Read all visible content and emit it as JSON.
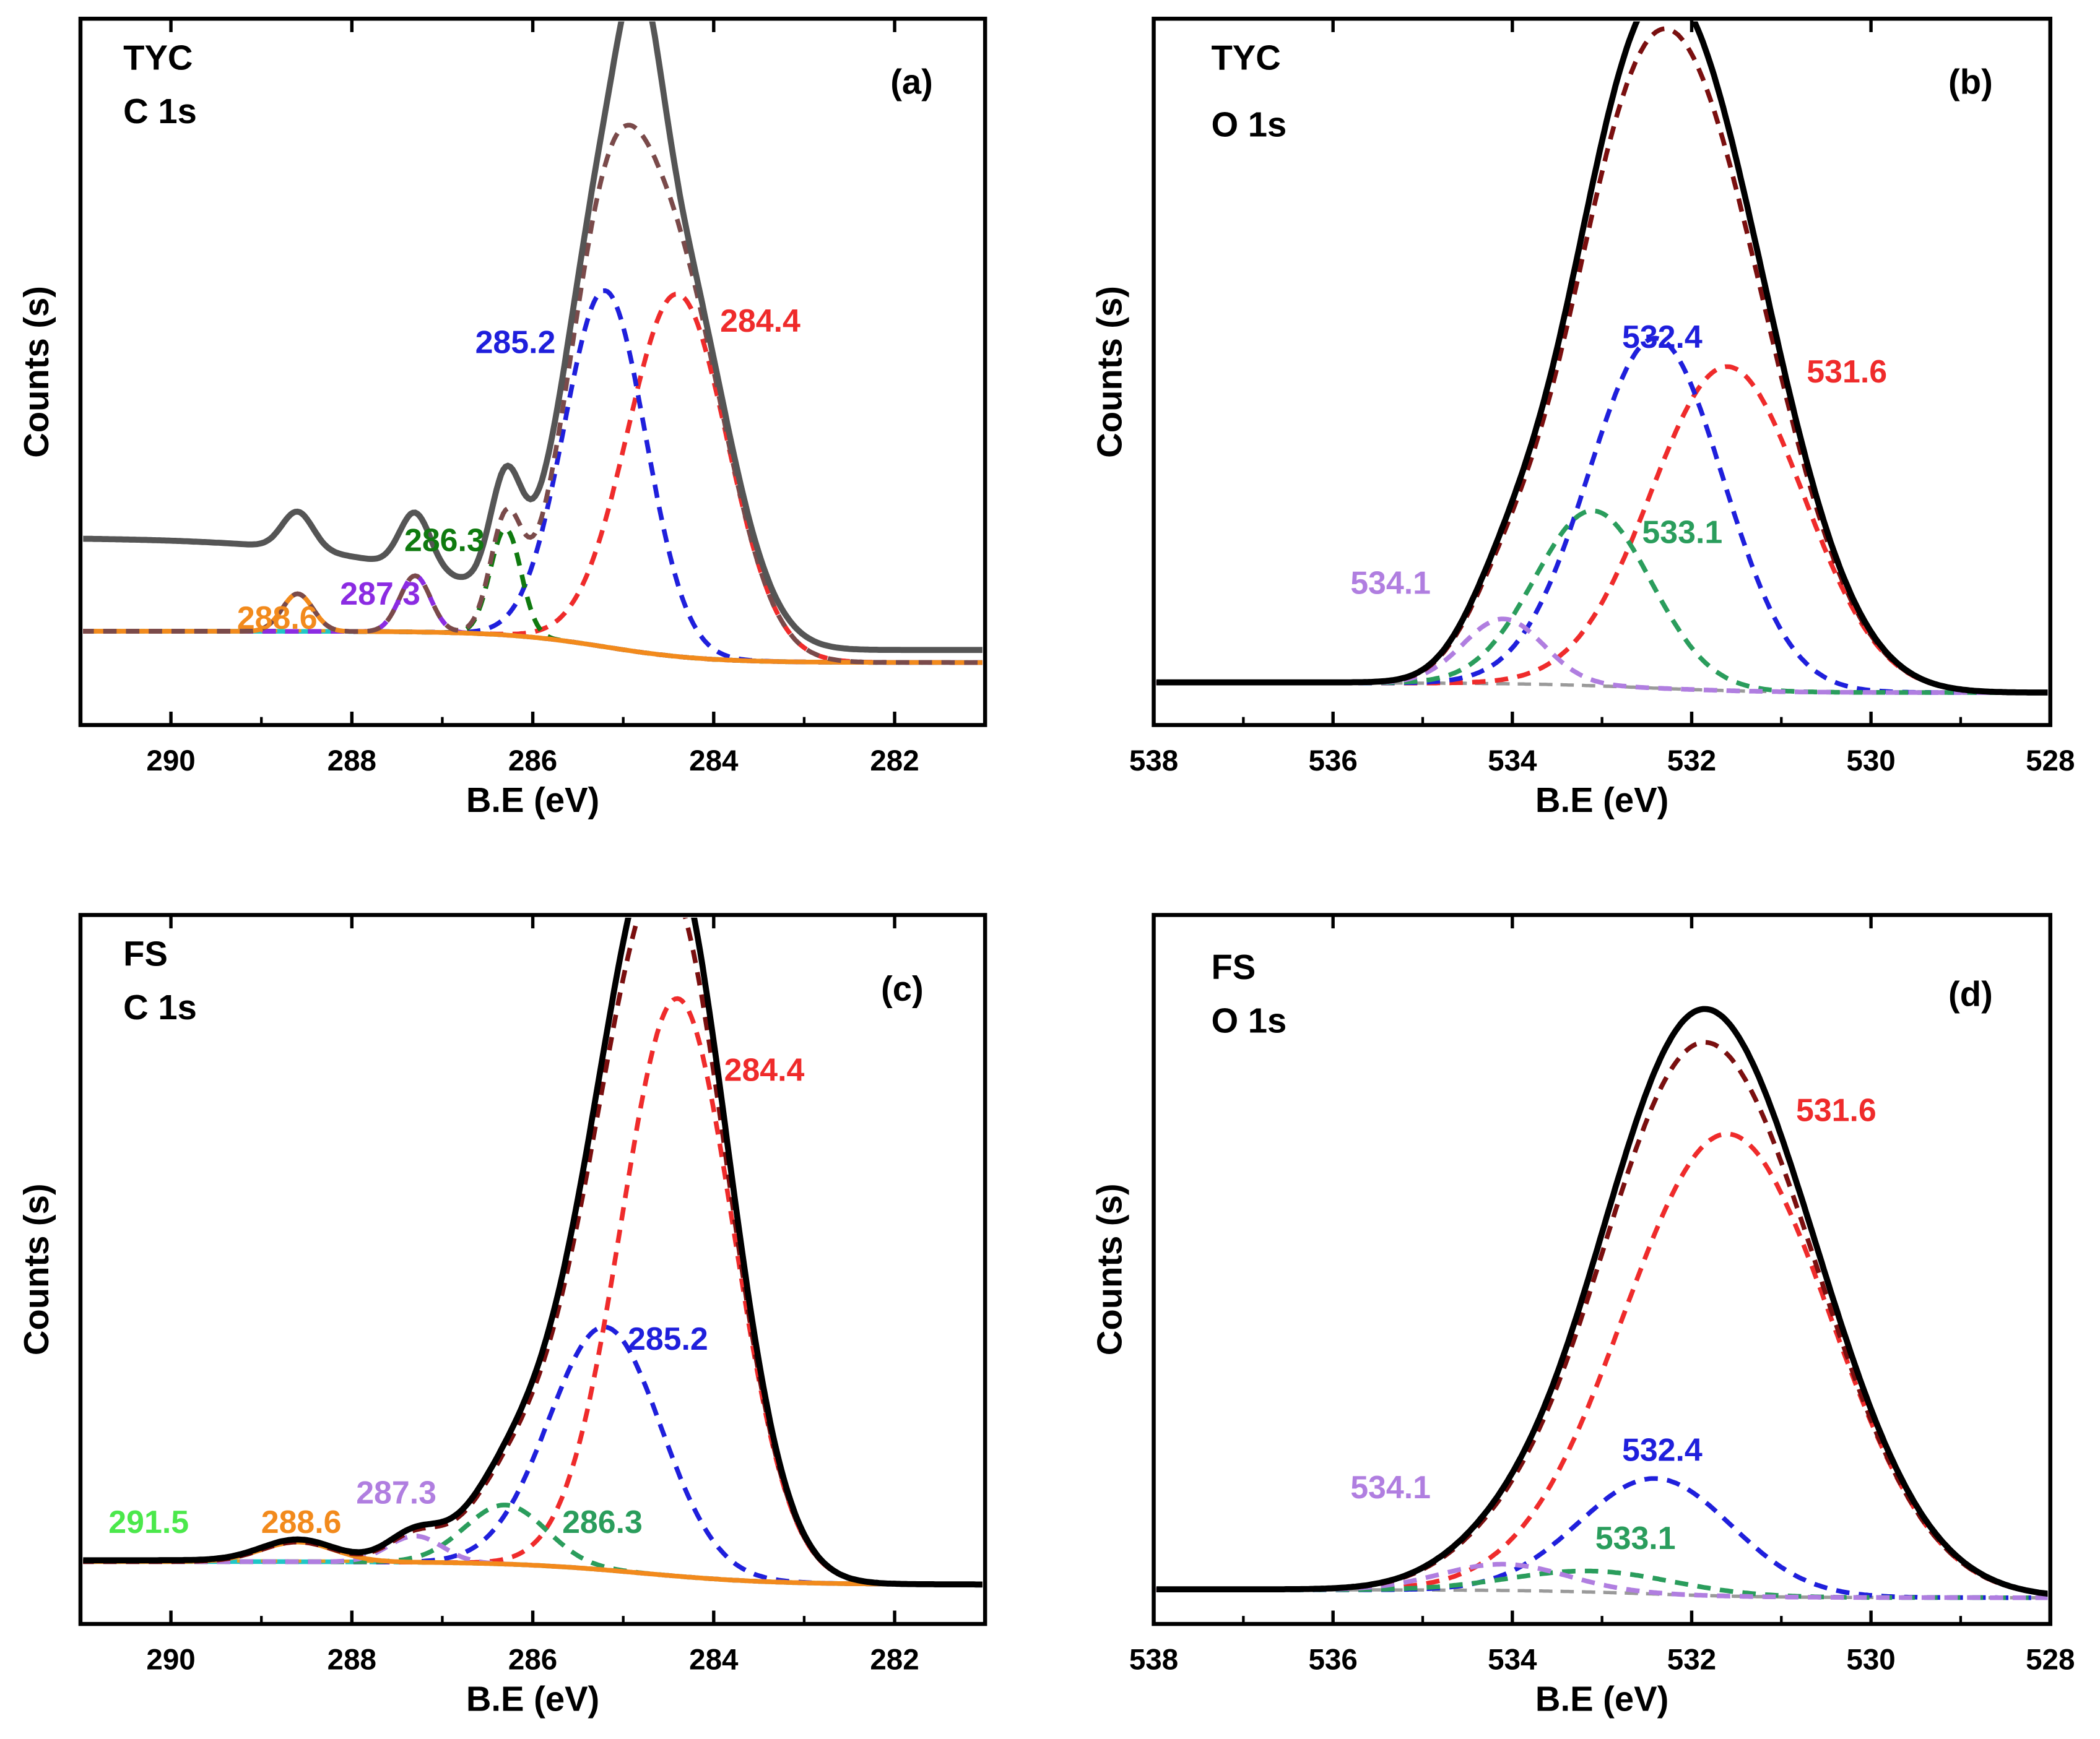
{
  "chart_data": [
    {
      "panel": "(a)",
      "type": "line",
      "sample": "TYC",
      "region": "C 1s",
      "xlabel": "B.E (eV)",
      "ylabel": "Counts (s)",
      "xlim": [
        291,
        281
      ],
      "ylim": [
        -0.08,
        1.05
      ],
      "xticks": [
        290,
        288,
        286,
        284,
        282
      ],
      "peaks": [
        {
          "label": "284.4",
          "color": "#ef2b2b",
          "center": 284.4,
          "height": 0.58,
          "sigma": 0.55,
          "dashed": true
        },
        {
          "label": "285.2",
          "color": "#1f1fdc",
          "center": 285.2,
          "height": 0.57,
          "sigma": 0.45,
          "dashed": true
        },
        {
          "label": "286.3",
          "color": "#0f7a0f",
          "center": 286.3,
          "height": 0.17,
          "sigma": 0.17,
          "dashed": true
        },
        {
          "label": "287.3",
          "color": "#8b2be2",
          "center": 287.3,
          "height": 0.09,
          "sigma": 0.17,
          "dashed": true
        },
        {
          "label": "288.6",
          "color": "#f28a1c",
          "center": 288.6,
          "height": 0.06,
          "sigma": 0.17,
          "dashed": false
        }
      ],
      "envelope_color": "#555555",
      "sum_color": "#7a4a4a",
      "baseline_color": "#1fc7c7",
      "baseline2_color": "#e0a020"
    },
    {
      "panel": "(b)",
      "type": "line",
      "sample": "TYC",
      "region": "O 1s",
      "xlabel": "B.E (eV)",
      "ylabel": "Counts (s)",
      "xlim": [
        538,
        528
      ],
      "ylim": [
        -0.05,
        1.04
      ],
      "xticks": [
        538,
        536,
        534,
        532,
        530,
        528
      ],
      "peaks": [
        {
          "label": "531.6",
          "color": "#ef2b2b",
          "center": 531.6,
          "height": 0.5,
          "sigma": 0.85,
          "dashed": true
        },
        {
          "label": "532.4",
          "color": "#1f1fdc",
          "center": 532.4,
          "height": 0.54,
          "sigma": 0.75,
          "dashed": true
        },
        {
          "label": "533.1",
          "color": "#2a9d5c",
          "center": 533.1,
          "height": 0.27,
          "sigma": 0.65,
          "dashed": true
        },
        {
          "label": "534.1",
          "color": "#b07ee0",
          "center": 534.1,
          "height": 0.1,
          "sigma": 0.45,
          "dashed": true
        }
      ],
      "envelope_color": "#000000",
      "sum_color": "#7a0f0f"
    },
    {
      "panel": "(c)",
      "type": "line",
      "sample": "FS",
      "region": "C 1s",
      "xlabel": "B.E (eV)",
      "ylabel": "Counts (s)",
      "xlim": [
        291,
        281
      ],
      "ylim": [
        -0.06,
        1.02
      ],
      "xticks": [
        290,
        288,
        286,
        284,
        282
      ],
      "peaks": [
        {
          "label": "284.4",
          "color": "#ef2b2b",
          "center": 284.4,
          "height": 0.88,
          "sigma": 0.62,
          "dashed": true
        },
        {
          "label": "285.2",
          "color": "#1f1fdc",
          "center": 285.2,
          "height": 0.37,
          "sigma": 0.62,
          "dashed": true
        },
        {
          "label": "286.3",
          "color": "#2a9d5c",
          "center": 286.3,
          "height": 0.09,
          "sigma": 0.45,
          "dashed": true
        },
        {
          "label": "287.3",
          "color": "#b07ee0",
          "center": 287.3,
          "height": 0.04,
          "sigma": 0.3,
          "dashed": true
        },
        {
          "label": "288.6",
          "color": "#f28a1c",
          "center": 288.6,
          "height": 0.03,
          "sigma": 0.4,
          "dashed": false
        },
        {
          "label": "291.5",
          "color": "#4be84b",
          "center": 291.5,
          "height": 0.0,
          "sigma": 0.4,
          "dashed": true
        }
      ],
      "envelope_color": "#000000",
      "sum_color": "#7a0f0f",
      "baseline_color": "#1fc7c7",
      "baseline2_color": "#e0a020"
    },
    {
      "panel": "(d)",
      "type": "line",
      "sample": "FS",
      "region": "O 1s",
      "xlabel": "B.E (eV)",
      "ylabel": "Counts (s)",
      "xlim": [
        538,
        528
      ],
      "ylim": [
        -0.05,
        1.3
      ],
      "xticks": [
        538,
        536,
        534,
        532,
        530,
        528
      ],
      "peaks": [
        {
          "label": "531.6",
          "color": "#ef2b2b",
          "center": 531.6,
          "height": 0.88,
          "sigma": 1.15,
          "dashed": true
        },
        {
          "label": "532.4",
          "color": "#1f1fdc",
          "center": 532.4,
          "height": 0.22,
          "sigma": 0.85,
          "dashed": true
        },
        {
          "label": "533.1",
          "color": "#2a9d5c",
          "center": 533.1,
          "height": 0.04,
          "sigma": 0.9,
          "dashed": true
        },
        {
          "label": "534.1",
          "color": "#b07ee0",
          "center": 534.1,
          "height": 0.05,
          "sigma": 0.7,
          "dashed": true
        }
      ],
      "envelope_color": "#000000",
      "sum_color": "#7a0f0f"
    }
  ]
}
